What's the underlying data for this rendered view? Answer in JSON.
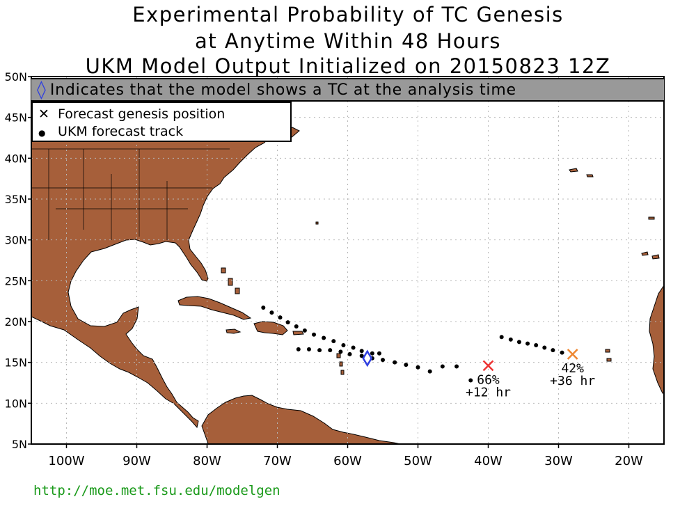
{
  "title": {
    "line1": "Experimental Probability of TC Genesis",
    "line2": "at Anytime Within 48 Hours",
    "line3": "UKM Model Output Initialized on 20150823 12Z"
  },
  "banner": {
    "diamond_symbol": "◊",
    "text": "Indicates that the model shows a TC at the analysis time"
  },
  "legend": {
    "genesis_symbol": "✕",
    "genesis_label": "Forecast genesis position",
    "track_symbol": "●",
    "track_label": "UKM forecast track"
  },
  "axes": {
    "lat_labels": [
      "50N",
      "45N",
      "40N",
      "35N",
      "30N",
      "25N",
      "20N",
      "15N",
      "10N",
      "5N"
    ],
    "lat_values": [
      50,
      45,
      40,
      35,
      30,
      25,
      20,
      15,
      10,
      5
    ],
    "lon_labels": [
      "100W",
      "90W",
      "80W",
      "70W",
      "60W",
      "50W",
      "40W",
      "30W",
      "20W"
    ],
    "lon_values": [
      -100,
      -90,
      -80,
      -70,
      -60,
      -50,
      -40,
      -30,
      -20
    ],
    "lon_range": [
      -105,
      -15
    ],
    "lat_range": [
      5,
      50
    ]
  },
  "colors": {
    "land": "#a65f3a",
    "banner_bg": "#999999",
    "diamond": "#2f3fe0",
    "genesis_a": "#ee3333",
    "genesis_b": "#ee8833",
    "footer": "#1a9a1a"
  },
  "storms": [
    {
      "genesis": {
        "lon": -40,
        "lat": 14.6
      },
      "color": "genesis_a",
      "prob_label": "66%",
      "time_label": "+12 hr",
      "track": [
        [
          -42.5,
          12.8
        ],
        [
          -44.5,
          14.5
        ],
        [
          -46.5,
          14.5
        ],
        [
          -48.3,
          13.9
        ],
        [
          -50,
          14.4
        ],
        [
          -51.7,
          14.7
        ],
        [
          -53.3,
          15
        ],
        [
          -55,
          15.3
        ],
        [
          -56.5,
          15.5
        ],
        [
          -58,
          15.8
        ],
        [
          -59.7,
          16
        ],
        [
          -61,
          16.3
        ],
        [
          -62.5,
          16.5
        ],
        [
          -64,
          16.5
        ],
        [
          -65.5,
          16.6
        ],
        [
          -67,
          16.6
        ]
      ]
    },
    {
      "genesis": {
        "lon": -28,
        "lat": 16
      },
      "color": "genesis_b",
      "prob_label": "42%",
      "time_label": "+36 hr",
      "track": [
        [
          -29.5,
          16.2
        ],
        [
          -30.8,
          16.5
        ],
        [
          -32,
          16.8
        ],
        [
          -33.2,
          17.1
        ],
        [
          -34.4,
          17.3
        ],
        [
          -35.6,
          17.5
        ],
        [
          -36.8,
          17.8
        ],
        [
          -38.1,
          18.1
        ]
      ]
    }
  ],
  "analysis_storm": {
    "diamond": {
      "lon": -57.2,
      "lat": 15.5
    },
    "track": [
      [
        -55.5,
        16.1
      ],
      [
        -56.5,
        16.1
      ],
      [
        -58,
        16.4
      ],
      [
        -59.2,
        16.8
      ],
      [
        -60.6,
        17.1
      ],
      [
        -62,
        17.6
      ],
      [
        -63.4,
        18
      ],
      [
        -64.8,
        18.4
      ],
      [
        -66.1,
        18.9
      ],
      [
        -67.3,
        19.4
      ],
      [
        -68.5,
        19.9
      ],
      [
        -69.6,
        20.5
      ],
      [
        -70.8,
        21.1
      ],
      [
        -72,
        21.7
      ]
    ]
  },
  "footer": {
    "url": "http://moe.met.fsu.edu/modelgen"
  }
}
